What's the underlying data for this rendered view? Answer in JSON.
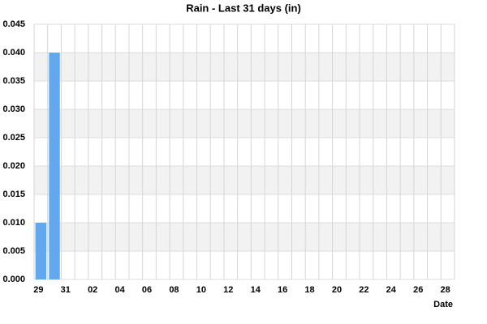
{
  "chart_data": {
    "type": "bar",
    "title": "Rain - Last 31 days (in)",
    "x_label": "Date",
    "categories": [
      "29",
      null,
      "31",
      null,
      "02",
      null,
      "04",
      null,
      "06",
      null,
      "08",
      null,
      "10",
      null,
      "12",
      null,
      "14",
      null,
      "16",
      null,
      "18",
      null,
      "20",
      null,
      "22",
      null,
      "24",
      null,
      "26",
      null,
      "28"
    ],
    "values": [
      0.01,
      0.04,
      0,
      0,
      0,
      0,
      0,
      0,
      0,
      0,
      0,
      0,
      0,
      0,
      0,
      0,
      0,
      0,
      0,
      0,
      0,
      0,
      0,
      0,
      0,
      0,
      0,
      0,
      0,
      0,
      0
    ],
    "color": "#62a8ee",
    "ylim": [
      0,
      0.045
    ],
    "yticks": [
      {
        "value": 0,
        "label": "0.000"
      },
      {
        "value": 0.005,
        "label": "0.005"
      },
      {
        "value": 0.01,
        "label": "0.010"
      },
      {
        "value": 0.015,
        "label": "0.015"
      },
      {
        "value": 0.02,
        "label": "0.020"
      },
      {
        "value": 0.025,
        "label": "0.025"
      },
      {
        "value": 0.03,
        "label": "0.030"
      },
      {
        "value": 0.035,
        "label": "0.035"
      },
      {
        "value": 0.04,
        "label": "0.040"
      },
      {
        "value": 0.045,
        "label": "0.045"
      }
    ],
    "grid": true
  }
}
